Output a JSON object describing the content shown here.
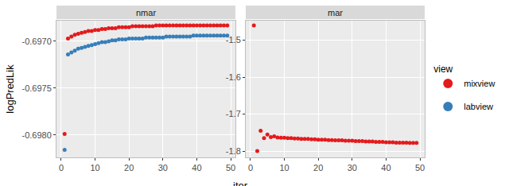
{
  "chart_data": {
    "type": "scatter",
    "x_label": "iter",
    "y_label": "logPredLik",
    "legend_title": "view",
    "legend": "right",
    "grid": true,
    "marker": "circle",
    "xlim": [
      -1.4,
      51.4
    ],
    "xticks": [
      0,
      10,
      20,
      30,
      40,
      50
    ],
    "x": [
      1,
      2,
      3,
      4,
      5,
      6,
      7,
      8,
      9,
      10,
      11,
      12,
      13,
      14,
      15,
      16,
      17,
      18,
      19,
      20,
      21,
      22,
      23,
      24,
      25,
      26,
      27,
      28,
      29,
      30,
      31,
      32,
      33,
      34,
      35,
      36,
      37,
      38,
      39,
      40,
      41,
      42,
      43,
      44,
      45,
      46,
      47,
      48,
      49
    ],
    "panels": [
      {
        "title": "nmar",
        "ylim": [
          -0.69824,
          -0.69678
        ],
        "yticks": [
          {
            "value": -0.698,
            "label": "-0.6980"
          },
          -0.6975,
          {
            "value": -0.697,
            "label": "-0.6970"
          }
        ],
        "series": [
          {
            "name": "mixview",
            "color": "#E41A1C",
            "values": [
              -0.69799,
              -0.69697,
              -0.69695,
              -0.69693,
              -0.69692,
              -0.69691,
              -0.6969,
              -0.69689,
              -0.69689,
              -0.69688,
              -0.69688,
              -0.69687,
              -0.69687,
              -0.69686,
              -0.69686,
              -0.69686,
              -0.69685,
              -0.69685,
              -0.69685,
              -0.69685,
              -0.69684,
              -0.69684,
              -0.69684,
              -0.69684,
              -0.69684,
              -0.69684,
              -0.69684,
              -0.69683,
              -0.69683,
              -0.69683,
              -0.69683,
              -0.69683,
              -0.69683,
              -0.69683,
              -0.69683,
              -0.69683,
              -0.69683,
              -0.69683,
              -0.69683,
              -0.69683,
              -0.69683,
              -0.69683,
              -0.69683,
              -0.69683,
              -0.69683,
              -0.69683,
              -0.69683,
              -0.69683,
              -0.69683
            ]
          },
          {
            "name": "labview",
            "color": "#377EB8",
            "values": [
              -0.69816,
              -0.69714,
              -0.69712,
              -0.6971,
              -0.69708,
              -0.69707,
              -0.69706,
              -0.69705,
              -0.69704,
              -0.69703,
              -0.69702,
              -0.69701,
              -0.69701,
              -0.697,
              -0.69699,
              -0.69699,
              -0.69698,
              -0.69698,
              -0.69698,
              -0.69697,
              -0.69697,
              -0.69697,
              -0.69697,
              -0.69697,
              -0.69696,
              -0.69696,
              -0.69696,
              -0.69696,
              -0.69696,
              -0.69696,
              -0.69695,
              -0.69695,
              -0.69695,
              -0.69695,
              -0.69695,
              -0.69695,
              -0.69695,
              -0.69695,
              -0.69694,
              -0.69694,
              -0.69694,
              -0.69694,
              -0.69694,
              -0.69694,
              -0.69694,
              -0.69694,
              -0.69694,
              -0.69694,
              -0.69694
            ]
          }
        ]
      },
      {
        "title": "mar",
        "ylim": [
          -1.817,
          -1.447
        ],
        "yticks": [
          -1.8,
          -1.7,
          -1.6,
          -1.5
        ],
        "series": [
          {
            "name": "mixview",
            "color": "#E41A1C",
            "values": [
              -1.46,
              -1.8,
              -1.745,
              -1.765,
              -1.755,
              -1.762,
              -1.76,
              -1.763,
              -1.764,
              -1.764,
              -1.765,
              -1.765,
              -1.766,
              -1.766,
              -1.767,
              -1.767,
              -1.767,
              -1.768,
              -1.768,
              -1.769,
              -1.769,
              -1.769,
              -1.77,
              -1.77,
              -1.771,
              -1.771,
              -1.771,
              -1.772,
              -1.772,
              -1.772,
              -1.773,
              -1.773,
              -1.773,
              -1.774,
              -1.774,
              -1.774,
              -1.775,
              -1.775,
              -1.775,
              -1.776,
              -1.776,
              -1.776,
              -1.777,
              -1.777,
              -1.777,
              -1.777,
              -1.778,
              -1.778,
              -1.778
            ]
          }
        ]
      }
    ]
  }
}
